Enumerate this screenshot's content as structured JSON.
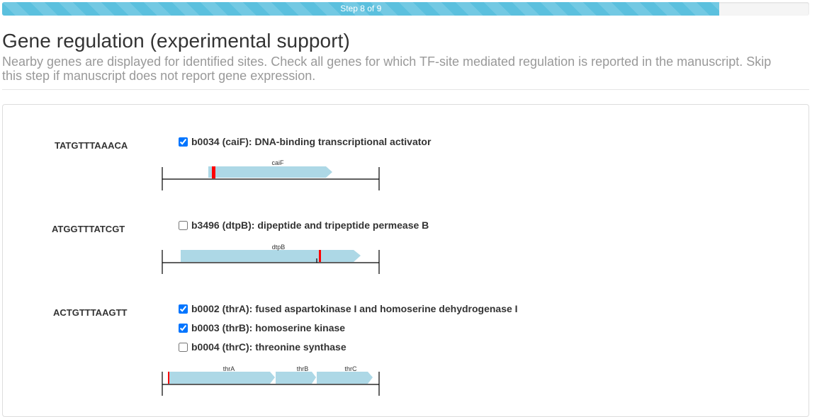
{
  "progress": {
    "label": "Step 8 of 9",
    "fraction": 0.8889,
    "color": "#5bc0de"
  },
  "header": {
    "title": "Gene regulation (experimental support)",
    "description": "Nearby genes are displayed for identified sites. Check all genes for which TF-site mediated regulation is reported in the manuscript. Skip this step if manuscript does not report gene expression."
  },
  "colors": {
    "gene_fill": "#add8e6",
    "site_mark": "#ff0000"
  },
  "sites": [
    {
      "sequence": "TATGTTTAAACA",
      "genes": [
        {
          "label": "b0034 (caiF): DNA-binding transcriptional activator",
          "checked": true
        }
      ],
      "diagram": {
        "gene_names": [
          "caiF"
        ]
      }
    },
    {
      "sequence": "ATGGTTTATCGT",
      "genes": [
        {
          "label": "b3496 (dtpB): dipeptide and tripeptide permease B",
          "checked": false
        }
      ],
      "diagram": {
        "gene_names": [
          "dtpB"
        ]
      }
    },
    {
      "sequence": "ACTGTTTAAGTT",
      "genes": [
        {
          "label": "b0002 (thrA): fused aspartokinase I and homoserine dehydrogenase I",
          "checked": true
        },
        {
          "label": "b0003 (thrB): homoserine kinase",
          "checked": true
        },
        {
          "label": "b0004 (thrC): threonine synthase",
          "checked": false
        }
      ],
      "diagram": {
        "gene_names": [
          "thrA",
          "thrB",
          "thrC"
        ]
      }
    }
  ]
}
